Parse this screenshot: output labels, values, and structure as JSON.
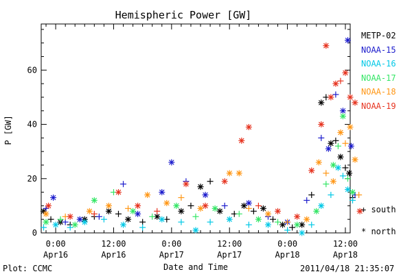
{
  "footer": {
    "plot_credit": "Plot: CCMC",
    "timestamp": "2011/04/18 21:35:07"
  },
  "markers": {
    "south_label": "+ south",
    "north_label": "* north"
  },
  "chart_data": {
    "type": "scatter",
    "title": "Hemispheric Power [GW]",
    "xlabel": "Date and Time",
    "ylabel": "P [GW]",
    "x_unit": "hours since 2011-04-16 00:00",
    "xlim": [
      -3,
      61
    ],
    "ylim": [
      0,
      77
    ],
    "yticks": [
      0,
      20,
      40,
      60
    ],
    "xticks": [
      {
        "x": 0,
        "label": "0:00",
        "sub": "Apr16"
      },
      {
        "x": 12,
        "label": "12:00",
        "sub": "Apr16"
      },
      {
        "x": 24,
        "label": "0:00",
        "sub": "Apr17"
      },
      {
        "x": 36,
        "label": "12:00",
        "sub": "Apr17"
      },
      {
        "x": 48,
        "label": "0:00",
        "sub": "Apr18"
      },
      {
        "x": 60,
        "label": "12:00",
        "sub": "Apr18"
      }
    ],
    "grid": false,
    "legend_position": "right",
    "series": [
      {
        "name": "METP-02",
        "color": "#000000",
        "points": [
          {
            "x": -2.5,
            "y": 8,
            "m": "*"
          },
          {
            "x": -1,
            "y": 5,
            "m": "+"
          },
          {
            "x": 1,
            "y": 4,
            "m": "*"
          },
          {
            "x": 3,
            "y": 3,
            "m": "+"
          },
          {
            "x": 6,
            "y": 5,
            "m": "*"
          },
          {
            "x": 8,
            "y": 6,
            "m": "+"
          },
          {
            "x": 11,
            "y": 8,
            "m": "*"
          },
          {
            "x": 13,
            "y": 7,
            "m": "+"
          },
          {
            "x": 15,
            "y": 5,
            "m": "*"
          },
          {
            "x": 18,
            "y": 4,
            "m": "+"
          },
          {
            "x": 21,
            "y": 6,
            "m": "*"
          },
          {
            "x": 23,
            "y": 5,
            "m": "+"
          },
          {
            "x": 26,
            "y": 8,
            "m": "*"
          },
          {
            "x": 28,
            "y": 10,
            "m": "+"
          },
          {
            "x": 30,
            "y": 17,
            "m": "*"
          },
          {
            "x": 32,
            "y": 19,
            "m": "+"
          },
          {
            "x": 34,
            "y": 8,
            "m": "*"
          },
          {
            "x": 37,
            "y": 7,
            "m": "+"
          },
          {
            "x": 39,
            "y": 10,
            "m": "*"
          },
          {
            "x": 41,
            "y": 8,
            "m": "+"
          },
          {
            "x": 43,
            "y": 9,
            "m": "*"
          },
          {
            "x": 45,
            "y": 5,
            "m": "+"
          },
          {
            "x": 47,
            "y": 3,
            "m": "*"
          },
          {
            "x": 49,
            "y": 2,
            "m": "+"
          },
          {
            "x": 51,
            "y": 3,
            "m": "*"
          },
          {
            "x": 53,
            "y": 14,
            "m": "+"
          },
          {
            "x": 55,
            "y": 48,
            "m": "*"
          },
          {
            "x": 56,
            "y": 50,
            "m": "+"
          },
          {
            "x": 57,
            "y": 33,
            "m": "*"
          },
          {
            "x": 58,
            "y": 34,
            "m": "+"
          },
          {
            "x": 59,
            "y": 28,
            "m": "*"
          },
          {
            "x": 60,
            "y": 24,
            "m": "+"
          },
          {
            "x": 60.8,
            "y": 22,
            "m": "*"
          },
          {
            "x": 61.5,
            "y": 13,
            "m": "+"
          }
        ]
      },
      {
        "name": "NOAA-15",
        "color": "#1a1acc",
        "points": [
          {
            "x": -2,
            "y": 9,
            "m": "+"
          },
          {
            "x": -0.5,
            "y": 13,
            "m": "*"
          },
          {
            "x": 2,
            "y": 4,
            "m": "+"
          },
          {
            "x": 5,
            "y": 5,
            "m": "*"
          },
          {
            "x": 9,
            "y": 6,
            "m": "+"
          },
          {
            "x": 14,
            "y": 18,
            "m": "+"
          },
          {
            "x": 17,
            "y": 7,
            "m": "*"
          },
          {
            "x": 22,
            "y": 15,
            "m": "*"
          },
          {
            "x": 24,
            "y": 26,
            "m": "*"
          },
          {
            "x": 27,
            "y": 19,
            "m": "+"
          },
          {
            "x": 31,
            "y": 14,
            "m": "*"
          },
          {
            "x": 35,
            "y": 10,
            "m": "+"
          },
          {
            "x": 40,
            "y": 11,
            "m": "*"
          },
          {
            "x": 44,
            "y": 6,
            "m": "+"
          },
          {
            "x": 48,
            "y": 4,
            "m": "*"
          },
          {
            "x": 52,
            "y": 12,
            "m": "+"
          },
          {
            "x": 55,
            "y": 35,
            "m": "+"
          },
          {
            "x": 56.5,
            "y": 31,
            "m": "*"
          },
          {
            "x": 58,
            "y": 51,
            "m": "+"
          },
          {
            "x": 59.5,
            "y": 45,
            "m": "*"
          },
          {
            "x": 60.5,
            "y": 71,
            "m": "*"
          },
          {
            "x": 61.2,
            "y": 32,
            "m": "*"
          },
          {
            "x": 62,
            "y": 14,
            "m": "+"
          }
        ]
      },
      {
        "name": "NOAA-16",
        "color": "#00c8e6",
        "points": [
          {
            "x": -2.5,
            "y": 2,
            "m": "+"
          },
          {
            "x": 0,
            "y": 3,
            "m": "*"
          },
          {
            "x": 3,
            "y": 2,
            "m": "+"
          },
          {
            "x": 6,
            "y": 4,
            "m": "*"
          },
          {
            "x": 10,
            "y": 5,
            "m": "+"
          },
          {
            "x": 14,
            "y": 3,
            "m": "*"
          },
          {
            "x": 18,
            "y": 2,
            "m": "+"
          },
          {
            "x": 22,
            "y": 5,
            "m": "*"
          },
          {
            "x": 26,
            "y": 4,
            "m": "+"
          },
          {
            "x": 29,
            "y": 1,
            "m": "*"
          },
          {
            "x": 32,
            "y": 4,
            "m": "+"
          },
          {
            "x": 36,
            "y": 5,
            "m": "*"
          },
          {
            "x": 40,
            "y": 3,
            "m": "+"
          },
          {
            "x": 44,
            "y": 3,
            "m": "*"
          },
          {
            "x": 48,
            "y": 1,
            "m": "+"
          },
          {
            "x": 51,
            "y": 0,
            "m": "*"
          },
          {
            "x": 53,
            "y": 3,
            "m": "+"
          },
          {
            "x": 55,
            "y": 10,
            "m": "*"
          },
          {
            "x": 57,
            "y": 14,
            "m": "+"
          },
          {
            "x": 58.5,
            "y": 24,
            "m": "*"
          },
          {
            "x": 59.5,
            "y": 21,
            "m": "+"
          },
          {
            "x": 60.5,
            "y": 16,
            "m": "*"
          },
          {
            "x": 61.5,
            "y": 12,
            "m": "+"
          }
        ]
      },
      {
        "name": "NOAA-17",
        "color": "#32e664",
        "points": [
          {
            "x": -2,
            "y": 4,
            "m": "*"
          },
          {
            "x": 1,
            "y": 5,
            "m": "+"
          },
          {
            "x": 4,
            "y": 3,
            "m": "*"
          },
          {
            "x": 8,
            "y": 12,
            "m": "*"
          },
          {
            "x": 12,
            "y": 15,
            "m": "+"
          },
          {
            "x": 16,
            "y": 8,
            "m": "*"
          },
          {
            "x": 20,
            "y": 6,
            "m": "+"
          },
          {
            "x": 25,
            "y": 10,
            "m": "*"
          },
          {
            "x": 29,
            "y": 6,
            "m": "+"
          },
          {
            "x": 33,
            "y": 9,
            "m": "*"
          },
          {
            "x": 38,
            "y": 7,
            "m": "+"
          },
          {
            "x": 42,
            "y": 5,
            "m": "*"
          },
          {
            "x": 46,
            "y": 4,
            "m": "+"
          },
          {
            "x": 50,
            "y": 3,
            "m": "*"
          },
          {
            "x": 54,
            "y": 8,
            "m": "*"
          },
          {
            "x": 56,
            "y": 18,
            "m": "+"
          },
          {
            "x": 57.5,
            "y": 25,
            "m": "*"
          },
          {
            "x": 58.5,
            "y": 32,
            "m": "+"
          },
          {
            "x": 59.5,
            "y": 43,
            "m": "*"
          },
          {
            "x": 60.5,
            "y": 20,
            "m": "+"
          },
          {
            "x": 61.5,
            "y": 15,
            "m": "*"
          }
        ]
      },
      {
        "name": "NOAA-18",
        "color": "#ff9614",
        "points": [
          {
            "x": -2,
            "y": 7,
            "m": "*"
          },
          {
            "x": 2,
            "y": 6,
            "m": "+"
          },
          {
            "x": 7,
            "y": 8,
            "m": "*"
          },
          {
            "x": 11,
            "y": 10,
            "m": "*"
          },
          {
            "x": 15,
            "y": 9,
            "m": "+"
          },
          {
            "x": 19,
            "y": 14,
            "m": "*"
          },
          {
            "x": 23,
            "y": 11,
            "m": "*"
          },
          {
            "x": 26,
            "y": 13,
            "m": "+"
          },
          {
            "x": 30,
            "y": 9,
            "m": "*"
          },
          {
            "x": 36,
            "y": 22,
            "m": "*"
          },
          {
            "x": 38,
            "y": 22,
            "m": "*"
          },
          {
            "x": 40,
            "y": 9,
            "m": "+"
          },
          {
            "x": 44,
            "y": 7,
            "m": "*"
          },
          {
            "x": 48,
            "y": 4,
            "m": "+"
          },
          {
            "x": 52,
            "y": 5,
            "m": "*"
          },
          {
            "x": 54.5,
            "y": 26,
            "m": "*"
          },
          {
            "x": 56,
            "y": 22,
            "m": "+"
          },
          {
            "x": 57.5,
            "y": 19,
            "m": "*"
          },
          {
            "x": 59,
            "y": 37,
            "m": "*"
          },
          {
            "x": 60,
            "y": 33,
            "m": "+"
          },
          {
            "x": 61,
            "y": 39,
            "m": "*"
          },
          {
            "x": 62,
            "y": 27,
            "m": "*"
          },
          {
            "x": 62.8,
            "y": 14,
            "m": "+"
          }
        ]
      },
      {
        "name": "NOAA-19",
        "color": "#e6321e",
        "points": [
          {
            "x": -1.5,
            "y": 10,
            "m": "*"
          },
          {
            "x": 3,
            "y": 6,
            "m": "*"
          },
          {
            "x": 8,
            "y": 7,
            "m": "+"
          },
          {
            "x": 13,
            "y": 15,
            "m": "*"
          },
          {
            "x": 17,
            "y": 10,
            "m": "*"
          },
          {
            "x": 21,
            "y": 8,
            "m": "+"
          },
          {
            "x": 27,
            "y": 18,
            "m": "*"
          },
          {
            "x": 31,
            "y": 10,
            "m": "*"
          },
          {
            "x": 35,
            "y": 19,
            "m": "*"
          },
          {
            "x": 38.5,
            "y": 34,
            "m": "*"
          },
          {
            "x": 40,
            "y": 39,
            "m": "*"
          },
          {
            "x": 42,
            "y": 10,
            "m": "+"
          },
          {
            "x": 46,
            "y": 8,
            "m": "*"
          },
          {
            "x": 50,
            "y": 6,
            "m": "*"
          },
          {
            "x": 53,
            "y": 23,
            "m": "*"
          },
          {
            "x": 55,
            "y": 40,
            "m": "*"
          },
          {
            "x": 56,
            "y": 69,
            "m": "*"
          },
          {
            "x": 57,
            "y": 50,
            "m": "*"
          },
          {
            "x": 58,
            "y": 55,
            "m": "*"
          },
          {
            "x": 59,
            "y": 56,
            "m": "+"
          },
          {
            "x": 60,
            "y": 59,
            "m": "*"
          },
          {
            "x": 61,
            "y": 50,
            "m": "*"
          },
          {
            "x": 62,
            "y": 48,
            "m": "*"
          },
          {
            "x": 63,
            "y": 8,
            "m": "*"
          }
        ]
      }
    ]
  }
}
